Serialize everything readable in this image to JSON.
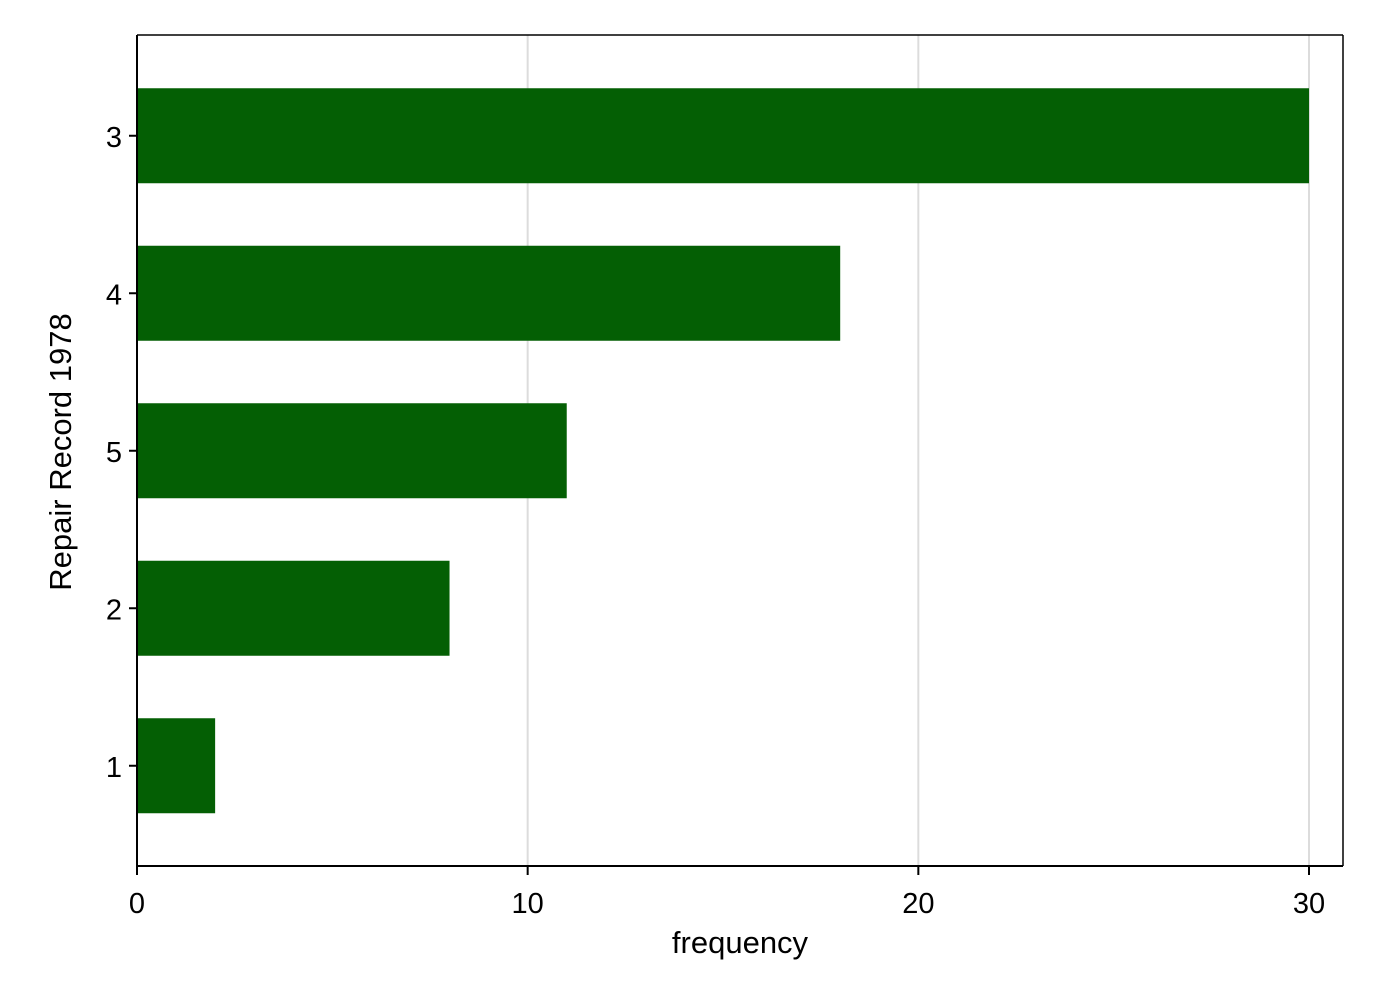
{
  "chart_data": {
    "type": "bar",
    "orientation": "horizontal",
    "categories": [
      "3",
      "4",
      "5",
      "2",
      "1"
    ],
    "values": [
      30,
      18,
      11,
      8,
      2
    ],
    "title": "",
    "xlabel": "frequency",
    "ylabel": "Repair Record 1978",
    "xlim": [
      0,
      30
    ],
    "xticks": [
      0,
      10,
      20,
      30
    ],
    "xtick_labels": [
      "0",
      "10",
      "20",
      "30"
    ],
    "grid": "vertical",
    "legend": "none",
    "colors": {
      "bar": "#045f04",
      "grid": "#dcdcdc",
      "axis": "#000000",
      "background": "#ffffff"
    }
  }
}
